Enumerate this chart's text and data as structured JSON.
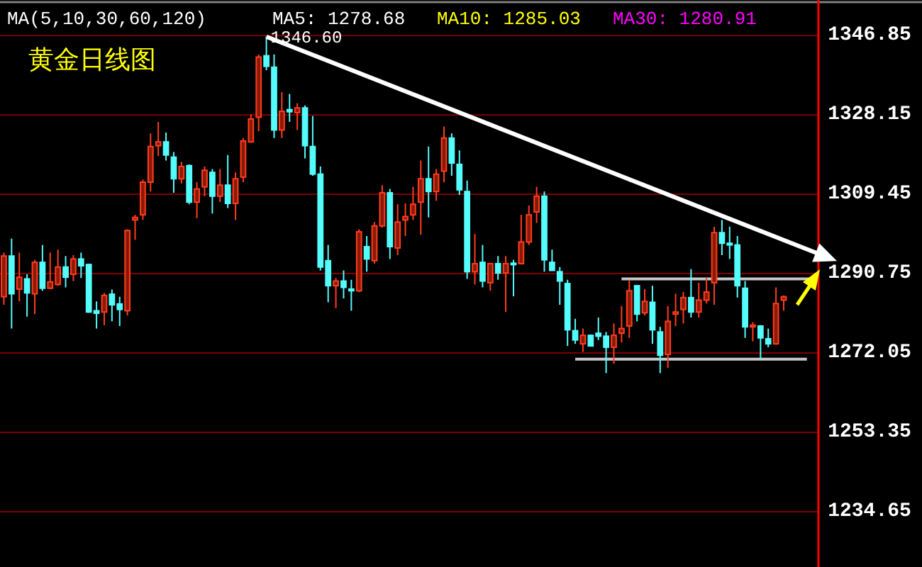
{
  "chart_data": {
    "type": "candlestick",
    "title": "黄金日线图",
    "categories": [
      null,
      null,
      null,
      null,
      null,
      null,
      null,
      null,
      null,
      null,
      null,
      null,
      null,
      null,
      null,
      null,
      null,
      null,
      null,
      null,
      null,
      null,
      null,
      null,
      null,
      null,
      null,
      null,
      null,
      null,
      null,
      null,
      null,
      null,
      null,
      null,
      null,
      null,
      null,
      null,
      null,
      null,
      null,
      null,
      null,
      null,
      null,
      null,
      null,
      null,
      null,
      null,
      null,
      null,
      null,
      null,
      null,
      null,
      null,
      null,
      null,
      null,
      null,
      null,
      null,
      null,
      null,
      null,
      null,
      null,
      null,
      null,
      null,
      null,
      null,
      null,
      null,
      null,
      null,
      null,
      null,
      null,
      null,
      null,
      null,
      null,
      null,
      null,
      null,
      null,
      null,
      null,
      null,
      null,
      null,
      null,
      null,
      null,
      null,
      null,
      null,
      null,
      null,
      null,
      null,
      null
    ],
    "ohlc": [
      [
        1285.3,
        1295.7,
        1283.4,
        1294.9
      ],
      [
        1294.9,
        1299.0,
        1277.8,
        1286.0
      ],
      [
        1287.1,
        1295.7,
        1284.2,
        1289.9
      ],
      [
        1289.5,
        1290.6,
        1280.6,
        1286.2
      ],
      [
        1286.0,
        1294.0,
        1281.2,
        1293.4
      ],
      [
        1293.4,
        1297.5,
        1286.7,
        1287.3
      ],
      [
        1287.3,
        1295.7,
        1287.1,
        1288.8
      ],
      [
        1288.2,
        1296.4,
        1287.9,
        1292.3
      ],
      [
        1292.3,
        1294.9,
        1287.5,
        1289.9
      ],
      [
        1290.6,
        1295.1,
        1289.0,
        1294.2
      ],
      [
        1294.2,
        1295.7,
        1289.7,
        1292.6
      ],
      [
        1292.9,
        1293.1,
        1281.5,
        1281.7
      ],
      [
        1282.0,
        1284.2,
        1277.8,
        1281.4
      ],
      [
        1281.7,
        1286.2,
        1278.6,
        1285.6
      ],
      [
        1285.9,
        1287.0,
        1279.5,
        1283.4
      ],
      [
        1283.6,
        1285.3,
        1278.4,
        1282.3
      ],
      [
        1282.0,
        1301.2,
        1280.9,
        1300.9
      ],
      [
        1303.4,
        1304.6,
        1298.7,
        1304.0
      ],
      [
        1304.6,
        1312.9,
        1303.4,
        1312.3
      ],
      [
        1312.3,
        1323.8,
        1310.1,
        1320.7
      ],
      [
        1320.9,
        1326.5,
        1318.5,
        1321.8
      ],
      [
        1321.8,
        1324.0,
        1317.4,
        1318.7
      ],
      [
        1318.2,
        1319.4,
        1309.8,
        1313.1
      ],
      [
        1313.1,
        1317.1,
        1312.0,
        1316.0
      ],
      [
        1316.2,
        1316.5,
        1307.1,
        1307.6
      ],
      [
        1307.6,
        1312.3,
        1303.8,
        1310.7
      ],
      [
        1311.2,
        1316.0,
        1309.0,
        1315.1
      ],
      [
        1314.6,
        1315.4,
        1304.9,
        1309.0
      ],
      [
        1309.0,
        1315.4,
        1307.6,
        1311.6
      ],
      [
        1311.6,
        1318.7,
        1306.2,
        1307.3
      ],
      [
        1307.3,
        1314.6,
        1303.4,
        1313.1
      ],
      [
        1313.5,
        1322.7,
        1312.3,
        1322.0
      ],
      [
        1321.8,
        1328.3,
        1321.6,
        1327.2
      ],
      [
        1327.6,
        1342.4,
        1324.3,
        1341.8
      ],
      [
        1342.1,
        1346.6,
        1338.7,
        1339.6
      ],
      [
        1339.4,
        1342.4,
        1322.7,
        1324.6
      ],
      [
        1324.6,
        1333.5,
        1322.7,
        1329.0
      ],
      [
        1329.4,
        1333.1,
        1326.5,
        1328.9
      ],
      [
        1328.7,
        1330.9,
        1324.6,
        1329.8
      ],
      [
        1329.8,
        1330.4,
        1317.9,
        1320.9
      ],
      [
        1320.7,
        1327.9,
        1313.8,
        1314.2
      ],
      [
        1314.2,
        1316.0,
        1291.5,
        1292.3
      ],
      [
        1293.8,
        1297.5,
        1284.0,
        1287.9
      ],
      [
        1287.9,
        1289.7,
        1282.6,
        1289.0
      ],
      [
        1289.0,
        1291.5,
        1284.9,
        1287.5
      ],
      [
        1287.1,
        1289.3,
        1282.0,
        1286.7
      ],
      [
        1286.7,
        1301.2,
        1286.4,
        1300.6
      ],
      [
        1297.1,
        1299.6,
        1291.2,
        1294.2
      ],
      [
        1293.8,
        1302.9,
        1293.1,
        1302.0
      ],
      [
        1302.0,
        1311.6,
        1301.6,
        1309.8
      ],
      [
        1309.8,
        1310.7,
        1294.2,
        1297.1
      ],
      [
        1296.8,
        1307.1,
        1295.1,
        1302.9
      ],
      [
        1303.4,
        1307.3,
        1299.6,
        1304.2
      ],
      [
        1304.6,
        1311.2,
        1303.4,
        1307.1
      ],
      [
        1307.6,
        1317.4,
        1299.9,
        1313.1
      ],
      [
        1313.1,
        1320.7,
        1304.0,
        1310.1
      ],
      [
        1310.1,
        1315.4,
        1307.9,
        1314.2
      ],
      [
        1314.9,
        1325.4,
        1312.3,
        1322.7
      ],
      [
        1322.7,
        1323.8,
        1313.8,
        1316.8
      ],
      [
        1316.5,
        1319.8,
        1309.3,
        1310.5
      ],
      [
        1310.1,
        1312.7,
        1289.5,
        1291.2
      ],
      [
        1291.2,
        1300.1,
        1288.2,
        1293.1
      ],
      [
        1293.4,
        1297.5,
        1287.5,
        1289.0
      ],
      [
        1288.6,
        1293.1,
        1286.7,
        1293.1
      ],
      [
        1293.1,
        1294.9,
        1289.3,
        1290.9
      ],
      [
        1290.9,
        1294.9,
        1281.7,
        1293.1
      ],
      [
        1293.2,
        1294.0,
        1285.4,
        1292.9
      ],
      [
        1293.1,
        1304.6,
        1292.9,
        1298.2
      ],
      [
        1298.2,
        1306.8,
        1297.5,
        1304.6
      ],
      [
        1305.3,
        1311.2,
        1302.7,
        1309.0
      ],
      [
        1309.0,
        1310.1,
        1291.2,
        1294.0
      ],
      [
        1293.4,
        1296.4,
        1291.5,
        1291.5
      ],
      [
        1291.2,
        1292.3,
        1283.4,
        1289.0
      ],
      [
        1288.4,
        1289.3,
        1273.7,
        1277.5
      ],
      [
        1277.3,
        1280.1,
        1274.2,
        1275.1
      ],
      [
        1274.2,
        1277.8,
        1272.3,
        1276.2
      ],
      [
        1276.2,
        1276.4,
        1273.7,
        1273.7
      ],
      [
        1276.7,
        1280.4,
        1275.1,
        1276.0
      ],
      [
        1276.0,
        1277.0,
        1267.3,
        1273.4
      ],
      [
        1273.4,
        1279.0,
        1269.5,
        1276.2
      ],
      [
        1276.7,
        1283.1,
        1274.5,
        1277.8
      ],
      [
        1278.4,
        1289.3,
        1275.6,
        1286.7
      ],
      [
        1287.9,
        1287.9,
        1279.5,
        1281.2
      ],
      [
        1281.5,
        1287.1,
        1280.9,
        1284.2
      ],
      [
        1284.0,
        1287.9,
        1274.2,
        1277.5
      ],
      [
        1277.0,
        1278.2,
        1267.3,
        1271.5
      ],
      [
        1271.7,
        1283.1,
        1268.5,
        1279.5
      ],
      [
        1281.2,
        1286.0,
        1278.4,
        1281.7
      ],
      [
        1282.3,
        1286.4,
        1279.0,
        1285.1
      ],
      [
        1285.1,
        1291.8,
        1280.4,
        1281.7
      ],
      [
        1281.7,
        1288.6,
        1280.4,
        1284.5
      ],
      [
        1284.5,
        1289.7,
        1283.7,
        1286.4
      ],
      [
        1288.6,
        1301.8,
        1283.4,
        1300.4
      ],
      [
        1300.4,
        1303.4,
        1295.1,
        1297.9
      ],
      [
        1297.9,
        1301.8,
        1294.2,
        1297.5
      ],
      [
        1297.5,
        1299.6,
        1285.1,
        1287.9
      ],
      [
        1287.3,
        1289.0,
        1275.6,
        1278.2
      ],
      [
        1278.2,
        1279.3,
        1274.8,
        1278.6
      ],
      [
        1278.4,
        1278.6,
        1270.6,
        1275.6
      ],
      [
        1275.4,
        1277.8,
        1273.4,
        1274.2
      ],
      [
        1274.2,
        1287.5,
        1274.0,
        1283.7
      ],
      [
        1284.5,
        1285.6,
        1282.0,
        1285.3
      ],
      null,
      null,
      null,
      null
    ],
    "series": [
      {
        "type": "line",
        "color": "#c8c8c8",
        "values": [
          null,
          null,
          null,
          null,
          null,
          null,
          null,
          null,
          null,
          null,
          null,
          null,
          null,
          null,
          null,
          null,
          null,
          null,
          null,
          null,
          null,
          null,
          null,
          null,
          null,
          null,
          null,
          null,
          null,
          null,
          null,
          null,
          null,
          null,
          null,
          null,
          null,
          null,
          null,
          null,
          null,
          null,
          null,
          null,
          null,
          null,
          null,
          null,
          null,
          null,
          null,
          null,
          null,
          null,
          null,
          null,
          null,
          null,
          null,
          null,
          null,
          null,
          null,
          null,
          null,
          null,
          null,
          null,
          null,
          null,
          null,
          null,
          null,
          null,
          null,
          null,
          null,
          null,
          null,
          null,
          1289.5,
          null,
          null,
          null,
          null,
          null,
          null,
          null,
          null,
          null,
          null,
          null,
          null,
          null,
          null,
          null,
          null,
          null,
          null,
          null,
          null,
          null,
          null,
          null,
          null,
          1289.5
        ]
      },
      {
        "type": "line",
        "color": "#c8c8c8",
        "values": [
          null,
          null,
          null,
          null,
          null,
          null,
          null,
          null,
          null,
          null,
          null,
          null,
          null,
          null,
          null,
          null,
          null,
          null,
          null,
          null,
          null,
          null,
          null,
          null,
          null,
          null,
          null,
          null,
          null,
          null,
          null,
          null,
          null,
          null,
          null,
          null,
          null,
          null,
          null,
          null,
          null,
          null,
          null,
          null,
          null,
          null,
          null,
          null,
          null,
          null,
          null,
          null,
          null,
          null,
          null,
          null,
          null,
          null,
          null,
          null,
          null,
          null,
          null,
          null,
          null,
          null,
          null,
          null,
          null,
          null,
          null,
          null,
          null,
          null,
          1270.6,
          null,
          null,
          null,
          null,
          null,
          null,
          null,
          null,
          null,
          null,
          null,
          null,
          null,
          null,
          null,
          null,
          null,
          null,
          null,
          null,
          null,
          null,
          null,
          null,
          null,
          null,
          null,
          null,
          null,
          1270.6,
          null
        ]
      }
    ],
    "ylim": [
      1221.6,
      1353.9
    ],
    "yticks": [
      1346.85,
      1328.15,
      1309.45,
      1290.75,
      1272.05,
      1253.35,
      1234.65
    ],
    "grid": "y",
    "tick_labels": "y",
    "annotations": [
      "MA(5,10,30,60,120)",
      "MA5: 1278.68",
      "MA10: 1285.03",
      "MA30: 1280.91",
      "1346.60"
    ]
  }
}
